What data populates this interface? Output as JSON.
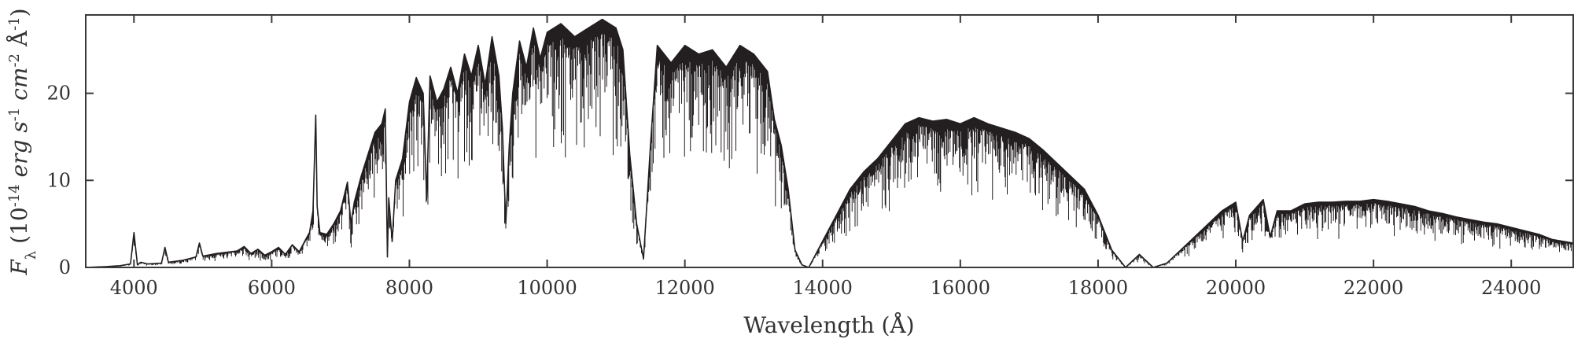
{
  "chart_data": {
    "type": "line",
    "xlabel": "Wavelength (Å)",
    "ylabel": "F_λ (10^-14 erg s^-1 cm^-2 Å^-1)",
    "xlim": [
      3300,
      24900
    ],
    "ylim": [
      0,
      29
    ],
    "x_ticks": [
      4000,
      6000,
      8000,
      10000,
      12000,
      14000,
      16000,
      18000,
      20000,
      22000,
      24000
    ],
    "y_ticks": [
      0,
      10,
      20
    ],
    "grid": false,
    "line_color": "#231f20",
    "series": [
      {
        "x": [
          3300,
          3600,
          3800,
          3950,
          4000,
          4050,
          4100,
          4200,
          4400,
          4450,
          4500,
          4700,
          4900,
          4950,
          5000,
          5200,
          5500,
          5600,
          5700,
          5800,
          5900,
          6000,
          6100,
          6200,
          6300,
          6400,
          6500,
          6550,
          6600,
          6640,
          6660,
          6700,
          6800,
          6900,
          7000,
          7100,
          7150,
          7200,
          7300,
          7400,
          7500,
          7600,
          7650,
          7680,
          7700,
          7750,
          7800,
          7900,
          8000,
          8100,
          8200,
          8250,
          8300,
          8400,
          8500,
          8600,
          8700,
          8800,
          8900,
          9000,
          9100,
          9200,
          9300,
          9350,
          9400,
          9450,
          9500,
          9600,
          9700,
          9800,
          9900,
          10000,
          10200,
          10400,
          10600,
          10800,
          11000,
          11100,
          11200,
          11300,
          11400,
          11500,
          11600,
          11800,
          12000,
          12200,
          12400,
          12600,
          12800,
          13000,
          13200,
          13300,
          13400,
          13500,
          13600,
          13700,
          13800,
          14000,
          14200,
          14400,
          14600,
          14800,
          15000,
          15200,
          15400,
          15600,
          15800,
          16000,
          16200,
          16400,
          16600,
          16800,
          17000,
          17200,
          17400,
          17600,
          17800,
          18000,
          18200,
          18400,
          18600,
          18800,
          19000,
          19200,
          19400,
          19600,
          19800,
          20000,
          20100,
          20200,
          20400,
          20500,
          20600,
          20800,
          21000,
          21200,
          21400,
          21600,
          21800,
          22000,
          22200,
          22400,
          22600,
          22800,
          23000,
          23200,
          23400,
          23600,
          23800,
          24000,
          24200,
          24400,
          24600,
          24900
        ],
        "y": [
          0.0,
          0.1,
          0.2,
          0.4,
          4.0,
          0.3,
          0.6,
          0.4,
          0.5,
          2.3,
          0.6,
          0.8,
          1.2,
          2.8,
          1.3,
          1.6,
          1.9,
          2.4,
          1.6,
          2.1,
          1.4,
          1.8,
          2.3,
          1.5,
          2.6,
          1.8,
          3.3,
          4.0,
          6.5,
          17.5,
          7.0,
          4.0,
          3.8,
          5.0,
          6.5,
          9.8,
          5.0,
          7.5,
          10.5,
          13.0,
          15.5,
          16.5,
          18.2,
          1.2,
          8.0,
          3.0,
          10.0,
          12.5,
          19.0,
          21.8,
          20.0,
          8.0,
          22.0,
          19.0,
          20.5,
          23.0,
          20.0,
          24.5,
          22.0,
          25.5,
          21.0,
          26.5,
          22.0,
          16.0,
          5.0,
          14.0,
          20.0,
          26.0,
          23.0,
          27.5,
          24.0,
          27.0,
          28.0,
          26.5,
          27.5,
          28.5,
          27.5,
          25.0,
          13.0,
          5.0,
          1.0,
          14.0,
          25.5,
          23.5,
          25.5,
          24.5,
          25.0,
          23.0,
          25.5,
          24.5,
          22.5,
          17.0,
          14.0,
          9.0,
          2.0,
          0.3,
          0.0,
          3.0,
          6.0,
          9.0,
          11.0,
          12.5,
          14.5,
          16.5,
          17.2,
          16.8,
          17.0,
          16.5,
          17.2,
          16.5,
          16.0,
          15.5,
          14.8,
          13.5,
          12.0,
          10.5,
          9.0,
          6.0,
          2.0,
          0.0,
          1.5,
          0.0,
          0.5,
          2.0,
          3.5,
          5.0,
          6.5,
          7.5,
          3.0,
          6.0,
          7.8,
          3.5,
          6.5,
          6.5,
          7.3,
          7.5,
          7.5,
          7.6,
          7.6,
          7.8,
          7.6,
          7.3,
          7.0,
          6.5,
          6.2,
          5.8,
          5.5,
          5.2,
          5.0,
          4.6,
          4.2,
          3.8,
          3.2,
          2.8
        ]
      }
    ]
  }
}
